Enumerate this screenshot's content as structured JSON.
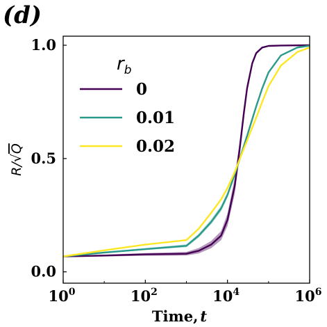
{
  "panel_label": "(d)",
  "chart_data": {
    "type": "line",
    "xlabel": "Time, t",
    "xlabel_parts": {
      "text": "Time,",
      "var": "t"
    },
    "ylabel": "R/√Q",
    "ylabel_parts": {
      "R": "R/",
      "radical": "√",
      "Q": "Q"
    },
    "xscale": "log",
    "xlim": [
      1,
      1000000
    ],
    "ylim": [
      -0.05,
      1.04
    ],
    "xticks": [
      {
        "value": 1,
        "base": "10",
        "exp": "0"
      },
      {
        "value": 100,
        "base": "10",
        "exp": "2"
      },
      {
        "value": 10000,
        "base": "10",
        "exp": "4"
      },
      {
        "value": 1000000,
        "base": "10",
        "exp": "6"
      }
    ],
    "yticks": [
      {
        "value": 0.0,
        "label": "0.0"
      },
      {
        "value": 0.5,
        "label": "0.5"
      },
      {
        "value": 1.0,
        "label": "1.0"
      }
    ],
    "legend": {
      "title_base": "r",
      "title_sub": "b",
      "position": "upper-left"
    },
    "series": [
      {
        "name": "0",
        "color": "#440154",
        "band": true,
        "x": [
          1,
          10,
          100,
          1000,
          2000,
          4000,
          7000,
          10000,
          15000,
          20000,
          25000,
          30000,
          40000,
          50000,
          70000,
          100000,
          200000,
          1000000
        ],
        "y": [
          0.068,
          0.072,
          0.077,
          0.08,
          0.093,
          0.12,
          0.16,
          0.23,
          0.38,
          0.55,
          0.7,
          0.81,
          0.92,
          0.965,
          0.99,
          0.997,
          0.999,
          1.0
        ],
        "band_width": [
          0.003,
          0.004,
          0.006,
          0.008,
          0.012,
          0.016,
          0.02,
          0.028,
          0.035,
          0.035,
          0.028,
          0.02,
          0.01,
          0.006,
          0.003,
          0.001,
          0.0,
          0.0
        ]
      },
      {
        "name": "0.01",
        "color": "#2a9a8a",
        "band": true,
        "x": [
          1,
          10,
          100,
          1000,
          2000,
          4000,
          7000,
          10000,
          15000,
          20000,
          30000,
          50000,
          70000,
          100000,
          200000,
          500000,
          1000000
        ],
        "y": [
          0.068,
          0.085,
          0.1,
          0.115,
          0.16,
          0.22,
          0.28,
          0.34,
          0.43,
          0.5,
          0.6,
          0.73,
          0.81,
          0.88,
          0.955,
          0.99,
          0.998
        ],
        "band_width": [
          0.002,
          0.003,
          0.004,
          0.006,
          0.008,
          0.01,
          0.012,
          0.012,
          0.01,
          0.008,
          0.006,
          0.004,
          0.003,
          0.002,
          0.001,
          0.0,
          0.0
        ]
      },
      {
        "name": "0.02",
        "color": "#fde725",
        "band": false,
        "x": [
          1,
          10,
          100,
          1000,
          2000,
          4000,
          7000,
          10000,
          15000,
          20000,
          30000,
          50000,
          70000,
          100000,
          200000,
          500000,
          1000000
        ],
        "y": [
          0.068,
          0.095,
          0.12,
          0.14,
          0.19,
          0.26,
          0.32,
          0.37,
          0.44,
          0.5,
          0.58,
          0.68,
          0.75,
          0.82,
          0.91,
          0.97,
          0.99
        ],
        "band_width": []
      }
    ]
  }
}
